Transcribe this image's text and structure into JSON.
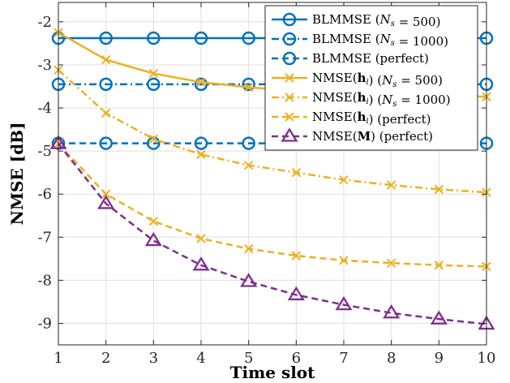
{
  "chart_data": {
    "type": "line",
    "xlabel": "Time slot",
    "ylabel": "NMSE [dB]",
    "x": [
      1,
      2,
      3,
      4,
      5,
      6,
      7,
      8,
      9,
      10
    ],
    "xlim": [
      1,
      10
    ],
    "ylim": [
      -9.5,
      -1.55
    ],
    "xticks": [
      "1",
      "2",
      "3",
      "4",
      "5",
      "6",
      "7",
      "8",
      "9",
      "10"
    ],
    "yticks": [
      -9,
      -8,
      -7,
      -6,
      -5,
      -4,
      -3,
      -2
    ],
    "ytick_labels": [
      "-9",
      "-8",
      "-7",
      "-6",
      "-5",
      "-4",
      "-3",
      "-2"
    ],
    "grid": true,
    "legend_position": "top-right",
    "colors": {
      "blue": "#0072BD",
      "gold": "#EDB120",
      "purple": "#7E2F8E"
    },
    "series": [
      {
        "label_main": "BLMMSE (",
        "label_sym": "N",
        "label_sub": "s",
        "label_rest": " = 500)",
        "color": "#0072BD",
        "dash": "solid",
        "marker": "circle",
        "values": [
          -2.38,
          -2.38,
          -2.38,
          -2.38,
          -2.38,
          -2.38,
          -2.38,
          -2.38,
          -2.38,
          -2.38
        ]
      },
      {
        "label_main": "BLMMSE (",
        "label_sym": "N",
        "label_sub": "s",
        "label_rest": " = 1000)",
        "color": "#0072BD",
        "dash": "dashdot",
        "marker": "circle",
        "values": [
          -3.45,
          -3.45,
          -3.45,
          -3.45,
          -3.45,
          -3.45,
          -3.45,
          -3.45,
          -3.45,
          -3.45
        ]
      },
      {
        "label_main": "BLMMSE (perfect)",
        "label_sym": "",
        "label_sub": "",
        "label_rest": "",
        "color": "#0072BD",
        "dash": "dashed",
        "marker": "circle",
        "values": [
          -4.82,
          -4.82,
          -4.82,
          -4.82,
          -4.82,
          -4.82,
          -4.82,
          -4.82,
          -4.82,
          -4.82
        ]
      },
      {
        "label_main": "NMSE(",
        "label_sym": "h",
        "label_sub": "i",
        "label_rest": ") (N = 500)",
        "label_rest_sub": "s",
        "color": "#EDB120",
        "dash": "solid",
        "marker": "x",
        "values": [
          -2.25,
          -2.88,
          -3.2,
          -3.4,
          -3.52,
          -3.6,
          -3.65,
          -3.68,
          -3.71,
          -3.74
        ]
      },
      {
        "label_main": "NMSE(",
        "label_sym": "h",
        "label_sub": "i",
        "label_rest": ") (N = 1000)",
        "label_rest_sub": "s",
        "color": "#EDB120",
        "dash": "dashdot",
        "marker": "x",
        "values": [
          -3.12,
          -4.12,
          -4.72,
          -5.08,
          -5.33,
          -5.5,
          -5.67,
          -5.79,
          -5.89,
          -5.96
        ]
      },
      {
        "label_main": "NMSE(",
        "label_sym": "h",
        "label_sub": "i",
        "label_rest": ") (perfect)",
        "color": "#EDB120",
        "dash": "dashed",
        "marker": "x",
        "values": [
          -4.83,
          -6.0,
          -6.63,
          -7.03,
          -7.27,
          -7.43,
          -7.54,
          -7.6,
          -7.65,
          -7.68
        ]
      },
      {
        "label_main": "NMSE(",
        "label_sym": "M",
        "label_sub": "",
        "label_rest": ") (perfect)",
        "color": "#7E2F8E",
        "dash": "dashed",
        "marker": "triangle",
        "values": [
          -4.83,
          -6.22,
          -7.08,
          -7.65,
          -8.03,
          -8.34,
          -8.57,
          -8.76,
          -8.9,
          -9.02
        ]
      }
    ]
  }
}
